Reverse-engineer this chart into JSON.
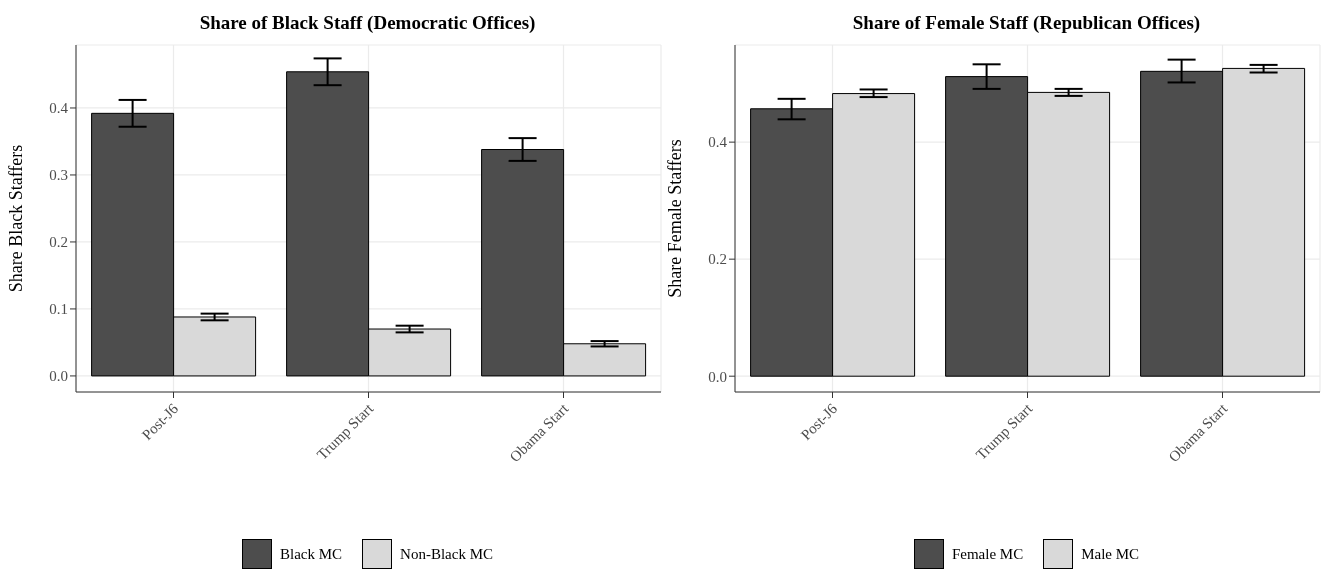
{
  "chart_data": [
    {
      "type": "bar",
      "title": "Share of Black Staff (Democratic Offices)",
      "ylabel": "Share Black Staffers",
      "categories": [
        "Post-J6",
        "Trump Start",
        "Obama Start"
      ],
      "series": [
        {
          "name": "Black MC",
          "color": "#4d4d4d",
          "values": [
            0.392,
            0.454,
            0.338
          ],
          "errors": [
            [
              0.372,
              0.412
            ],
            [
              0.434,
              0.474
            ],
            [
              0.321,
              0.355
            ]
          ]
        },
        {
          "name": "Non-Black MC",
          "color": "#d9d9d9",
          "values": [
            0.088,
            0.07,
            0.048
          ],
          "errors": [
            [
              0.083,
              0.093
            ],
            [
              0.065,
              0.075
            ],
            [
              0.044,
              0.052
            ]
          ]
        }
      ],
      "ylim": [
        -0.024,
        0.494
      ],
      "yticks": [
        {
          "value": 0,
          "label": "0.0"
        },
        {
          "value": 0.1,
          "label": "0.1"
        },
        {
          "value": 0.2,
          "label": "0.2"
        },
        {
          "value": 0.3,
          "label": "0.3"
        },
        {
          "value": 0.4,
          "label": "0.4"
        }
      ],
      "grid": true,
      "legend": "bottom"
    },
    {
      "type": "bar",
      "title": "Share of Female Staff (Republican Offices)",
      "ylabel": "Share Female Staffers",
      "categories": [
        "Post-J6",
        "Trump Start",
        "Obama Start"
      ],
      "series": [
        {
          "name": "Female MC",
          "color": "#4d4d4d",
          "values": [
            0.457,
            0.512,
            0.521
          ],
          "errors": [
            [
              0.439,
              0.474
            ],
            [
              0.491,
              0.533
            ],
            [
              0.502,
              0.541
            ]
          ]
        },
        {
          "name": "Male MC",
          "color": "#d9d9d9",
          "values": [
            0.483,
            0.485,
            0.526
          ],
          "errors": [
            [
              0.477,
              0.49
            ],
            [
              0.479,
              0.491
            ],
            [
              0.519,
              0.532
            ]
          ]
        }
      ],
      "ylim": [
        -0.027,
        0.566
      ],
      "yticks": [
        {
          "value": 0,
          "label": "0.0"
        },
        {
          "value": 0.2,
          "label": "0.2"
        },
        {
          "value": 0.4,
          "label": "0.4"
        }
      ],
      "grid": true,
      "legend": "bottom"
    }
  ]
}
